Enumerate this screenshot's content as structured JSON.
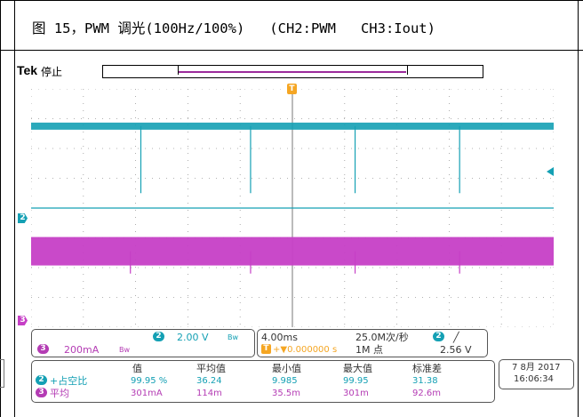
{
  "caption": {
    "text": "图 15，PWM 调光(100Hz/100%)   (CH2:PWM   CH3:Iout)"
  },
  "scope": {
    "brand": "Tek",
    "run_status": "停止",
    "trigger_marker": "T",
    "ch2_marker": "2",
    "ch3_marker": "3"
  },
  "channel_settings": {
    "ch3_badge": "3",
    "ch3_scale": "200mA",
    "ch3_bw_icon": "bandwidth-limit-icon",
    "ch2_badge": "2",
    "ch2_scale": "2.00 V",
    "ch2_bw_icon": "bandwidth-limit-icon"
  },
  "horizontal_settings": {
    "time_scale": "4.00ms",
    "trigger_badge": "T",
    "trigger_delay": "+▼0.000000 s",
    "sample_rate": "25.0M次/秒",
    "record_length": "1M 点",
    "trigger_source_badge": "2",
    "trigger_slope": "╱",
    "trigger_level": "2.56 V"
  },
  "measurements": {
    "headers": [
      "值",
      "平均值",
      "最小值",
      "最大值",
      "标准差"
    ],
    "rows": [
      {
        "badge": "2",
        "name": "+占空比",
        "values": [
          "99.95 %",
          "36.24",
          "9.985",
          "99.95",
          "31.38"
        ]
      },
      {
        "badge": "3",
        "name": "平均",
        "values": [
          "301mA",
          "114m",
          "35.5m",
          "301m",
          "92.6m"
        ]
      }
    ]
  },
  "datetime": {
    "date": "7 8月 2017",
    "time": "16:06:34"
  },
  "colors": {
    "ch2": "#14a0b4",
    "ch3": "#c63fc6",
    "trigger": "#f5a623"
  },
  "chart_data": {
    "type": "line",
    "title": "",
    "xlabel": "",
    "ylabel": "",
    "grid": true,
    "time_per_division_ms": 4.0,
    "divisions_x": 10,
    "divisions_y": 8,
    "series": [
      {
        "name": "CH2",
        "description_level_high": "steady high with periodic narrow dropouts",
        "dropout_times_div": [
          2.1,
          4.2,
          6.2,
          8.2
        ],
        "volts_per_div": 2.0
      },
      {
        "name": "CH3",
        "description_level": "constant band with periodic narrow dips",
        "dip_times_div": [
          1.9,
          4.2,
          6.2,
          8.2
        ],
        "amps_per_div": 0.2
      }
    ]
  }
}
